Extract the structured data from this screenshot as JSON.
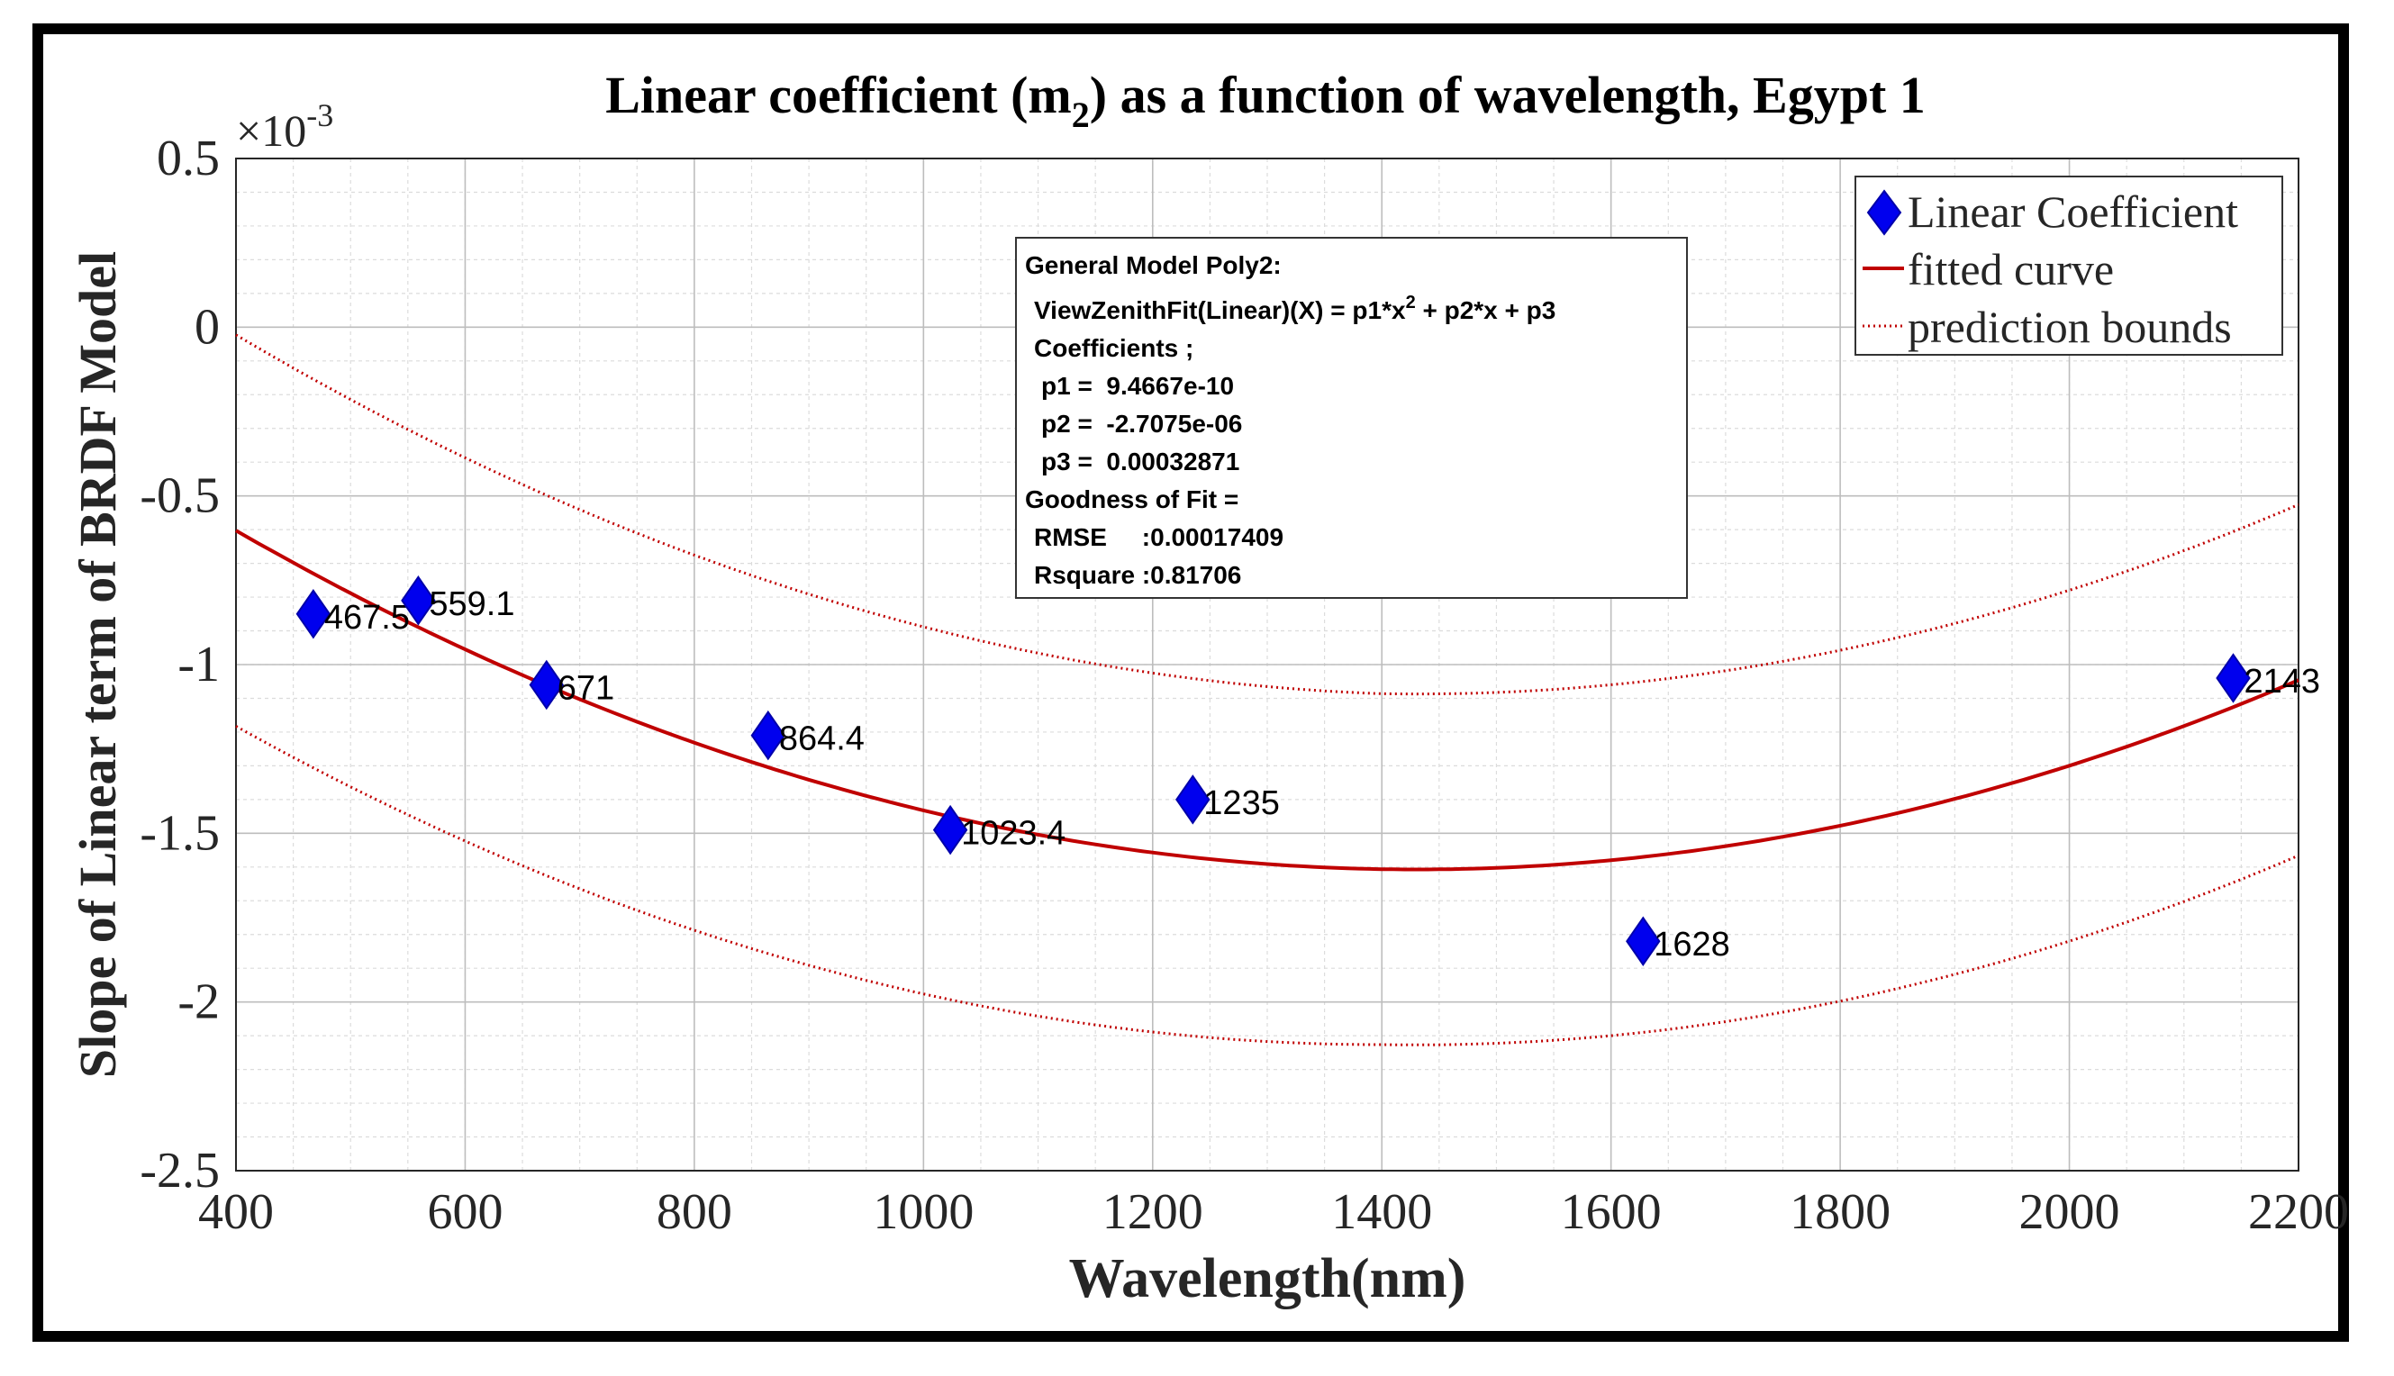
{
  "chart_data": {
    "type": "scatter",
    "title_prefix": "Linear coefficient (m",
    "title_sub": "2",
    "title_suffix": ") as a function of wavelength, Egypt 1",
    "xlabel": "Wavelength(nm)",
    "ylabel": "Slope of Linear term of BRDF Model",
    "exponent_label": "×10",
    "exponent_power": "-3",
    "xlim": [
      400,
      2200
    ],
    "ylim": [
      -2.5,
      0.5
    ],
    "x_ticks": [
      400,
      600,
      800,
      1000,
      1200,
      1400,
      1600,
      1800,
      2000,
      2200
    ],
    "x_tick_labels": [
      "400",
      "600",
      "800",
      "1000",
      "1200",
      "1400",
      "1600",
      "1800",
      "2000",
      "2200"
    ],
    "y_ticks": [
      0.5,
      0,
      -0.5,
      -1,
      -1.5,
      -2,
      -2.5
    ],
    "y_tick_labels": [
      "0.5",
      "0",
      "-0.5",
      "-1",
      "-1.5",
      "-2",
      "-2.5"
    ],
    "grid": true,
    "minor_grid": true,
    "series": [
      {
        "name": "Linear Coefficient",
        "kind": "points",
        "marker": "diamond",
        "color": "#0000ee",
        "x": [
          467.5,
          559.1,
          671,
          864.4,
          1023.4,
          1235,
          1628,
          2143
        ],
        "y": [
          -0.85,
          -0.81,
          -1.06,
          -1.21,
          -1.49,
          -1.4,
          -1.82,
          -1.04
        ],
        "point_labels": [
          "467.5",
          "559.1",
          "671",
          "864.4",
          "1023.4",
          "1235",
          "1628",
          "2143"
        ]
      },
      {
        "name": "fitted curve",
        "kind": "poly2",
        "color": "#c00000",
        "coefficients_e3": [
          9.4667e-07,
          -0.0027075,
          0.32871
        ],
        "style": "solid"
      },
      {
        "name": "prediction bounds",
        "kind": "poly2_offset",
        "color": "#c00000",
        "style": "dotted",
        "upper_offset_e3": [
          0.58,
          0.52,
          0.52
        ],
        "lower_offset_e3": [
          -0.58,
          -0.52,
          -0.52
        ],
        "offset_at_x": [
          400,
          1400,
          2200
        ]
      }
    ],
    "legend": {
      "position": "top-right",
      "entries": [
        "Linear Coefficient",
        "fitted curve",
        "prediction bounds"
      ]
    },
    "annotation": {
      "lines": [
        "General Model Poly2:",
        "ViewZenithFit(Linear)(X) = p1*x",
        "2",
        " + p2*x + p3",
        "Coefficients ;",
        "p1 =  9.4667e-10",
        "p2 =  -2.7075e-06",
        "p3 =  0.00032871",
        "Goodness of Fit =",
        "RMSE     :0.00017409",
        "Rsquare :0.81706"
      ]
    }
  }
}
